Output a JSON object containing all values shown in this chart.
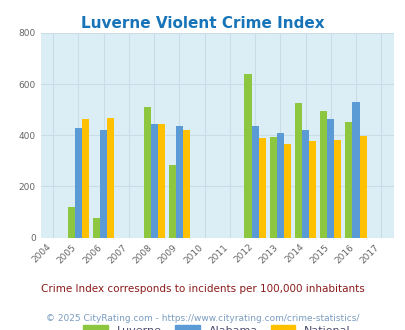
{
  "title": "Luverne Violent Crime Index",
  "subtitle": "Crime Index corresponds to incidents per 100,000 inhabitants",
  "footer": "© 2025 CityRating.com - https://www.cityrating.com/crime-statistics/",
  "years": [
    2004,
    2005,
    2006,
    2007,
    2008,
    2009,
    2010,
    2011,
    2012,
    2013,
    2014,
    2015,
    2016,
    2017
  ],
  "data_years": [
    2005,
    2006,
    2008,
    2009,
    2012,
    2013,
    2014,
    2015,
    2016
  ],
  "luverne": [
    120,
    75,
    510,
    285,
    638,
    393,
    527,
    495,
    453
  ],
  "alabama": [
    428,
    422,
    443,
    438,
    438,
    410,
    420,
    465,
    530
  ],
  "national": [
    462,
    468,
    443,
    420,
    390,
    367,
    379,
    383,
    397
  ],
  "ylim": [
    0,
    800
  ],
  "yticks": [
    0,
    200,
    400,
    600,
    800
  ],
  "color_luverne": "#8dc63f",
  "color_alabama": "#5b9bd5",
  "color_national": "#ffc000",
  "bg_color": "#dceef5",
  "title_color": "#1874b8",
  "subtitle_color": "#8b1a1a",
  "footer_color": "#7a9cc0",
  "legend_label_color": "#4a4a6a",
  "bar_width": 0.28,
  "grid_color": "#c8dde8"
}
